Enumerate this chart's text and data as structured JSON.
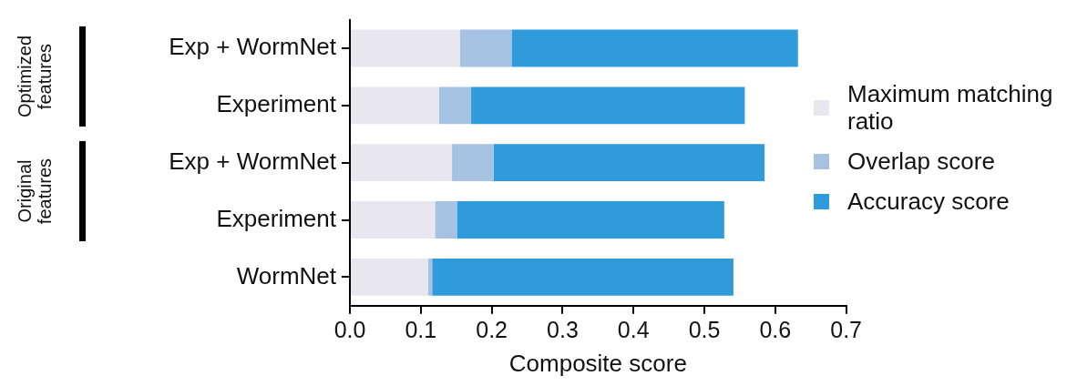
{
  "chart_data": {
    "type": "bar",
    "orientation": "horizontal",
    "stacked": true,
    "xlabel": "Composite score",
    "categories": [
      "Exp + WormNet",
      "Experiment",
      "Exp + WormNet",
      "Experiment",
      "WormNet"
    ],
    "series": [
      {
        "name": "Maximum matching ratio",
        "color": "#e8e6ee",
        "values": [
          0.155,
          0.126,
          0.144,
          0.12,
          0.11
        ]
      },
      {
        "name": "Overlap score",
        "color": "#a6c2e3",
        "values": [
          0.073,
          0.045,
          0.059,
          0.031,
          0.006
        ]
      },
      {
        "name": "Accuracy score",
        "color": "#2f9bda",
        "values": [
          0.404,
          0.386,
          0.382,
          0.377,
          0.425
        ]
      }
    ],
    "xlim": [
      0,
      0.7
    ],
    "xticks": [
      {
        "value": 0,
        "label": "0.0"
      },
      {
        "value": 0.1,
        "label": "0.1"
      },
      {
        "value": 0.2,
        "label": "0.2"
      },
      {
        "value": 0.3,
        "label": "0.3"
      },
      {
        "value": 0.4,
        "label": "0.4"
      },
      {
        "value": 0.5,
        "label": "0.5"
      },
      {
        "value": 0.6,
        "label": "0.6"
      },
      {
        "value": 0.7,
        "label": "0.7"
      }
    ],
    "grid": false,
    "legend": "right",
    "annotations": [
      "Optimized features",
      "Original features"
    ]
  }
}
